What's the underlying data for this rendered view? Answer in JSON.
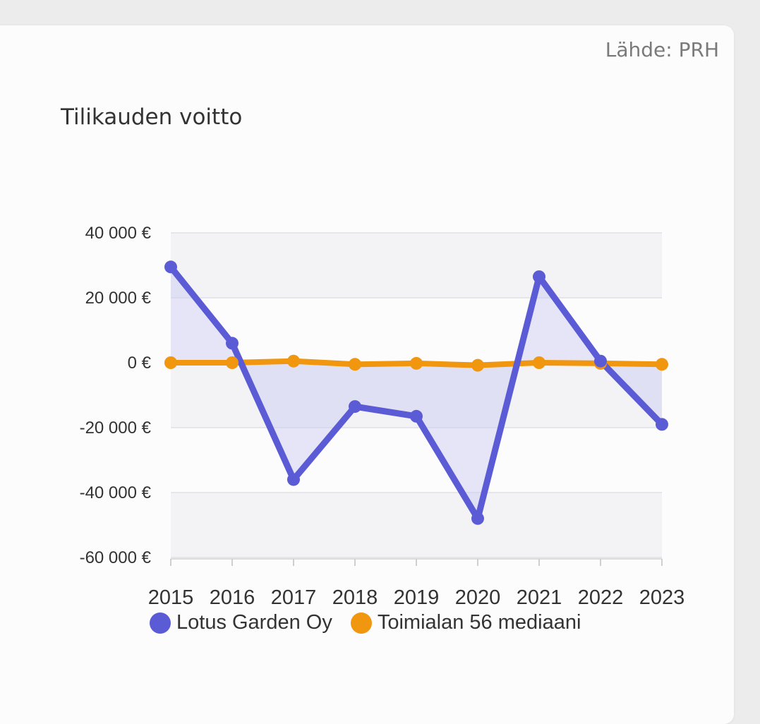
{
  "source_label": "Lähde: PRH",
  "colors": {
    "company": "#5b5bd6",
    "median": "#f0960f",
    "band": "#f3f3f6",
    "grid": "#e6e6ea",
    "fill": "#c9c9f2"
  },
  "chart_data": {
    "type": "line",
    "title": "Tilikauden voitto",
    "xlabel": "",
    "ylabel": "",
    "categories": [
      "2015",
      "2016",
      "2017",
      "2018",
      "2019",
      "2020",
      "2021",
      "2022",
      "2023"
    ],
    "y_ticks": [
      40000,
      20000,
      0,
      -20000,
      -40000,
      -60000
    ],
    "y_tick_labels": [
      "40 000 €",
      "20 000 €",
      "0 €",
      "-20 000 €",
      "-40 000 €",
      "-60 000 €"
    ],
    "ylim": [
      -60000,
      40000
    ],
    "grid": true,
    "legend_position": "bottom",
    "series": [
      {
        "name": "Lotus Garden Oy",
        "values": [
          29500,
          6000,
          -36000,
          -13500,
          -16500,
          -48000,
          26500,
          500,
          -19000
        ]
      },
      {
        "name": "Toimialan 56 mediaani",
        "values": [
          0,
          0,
          500,
          -500,
          -200,
          -800,
          0,
          -200,
          -500
        ]
      }
    ]
  }
}
